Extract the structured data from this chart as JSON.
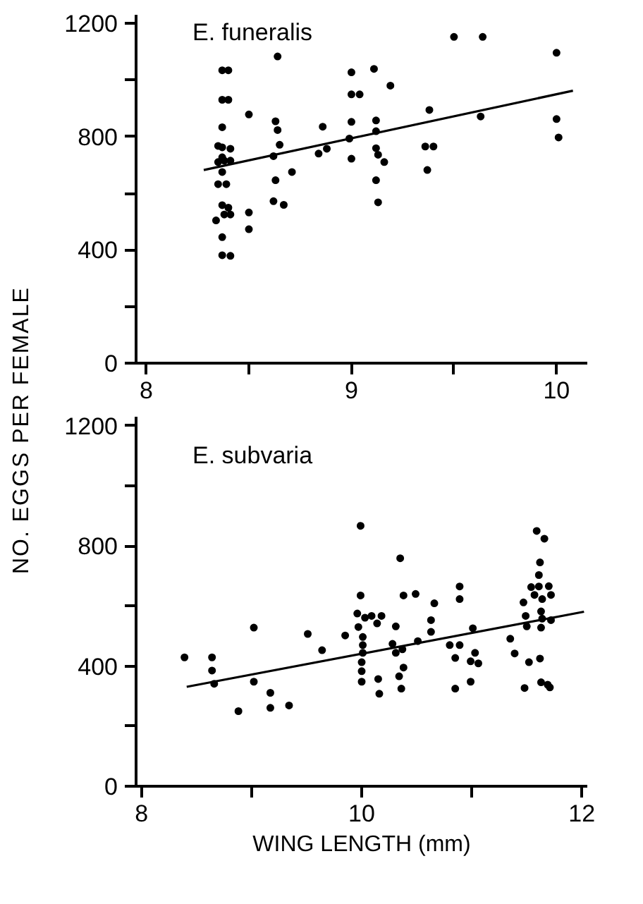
{
  "chart_data": [
    {
      "type": "scatter",
      "annotations": [
        "E. funeralis"
      ],
      "ylabel": "NO. EGGS PER FEMALE",
      "grid": false,
      "xlim": [
        7.95,
        10.15
      ],
      "ylim": [
        0,
        1230
      ],
      "xticks": [
        8,
        {
          "value": 8.5,
          "label": null
        },
        9,
        {
          "value": 9.5,
          "label": null
        },
        10
      ],
      "yticks": [
        0,
        {
          "value": 200,
          "label": null
        },
        400,
        {
          "value": 600,
          "label": null
        },
        800,
        {
          "value": 1000,
          "label": null
        },
        1200
      ],
      "series": [
        {
          "marker": "circle",
          "color": "#000000",
          "x": [
            8.37,
            8.4,
            8.37,
            8.4,
            8.37,
            8.35,
            8.37,
            8.41,
            8.35,
            8.38,
            8.41,
            8.37,
            8.37,
            8.35,
            8.39,
            8.37,
            8.4,
            8.38,
            8.41,
            8.34,
            8.37,
            8.37,
            8.41,
            8.5,
            8.5,
            8.5,
            8.64,
            8.63,
            8.64,
            8.65,
            8.62,
            8.63,
            8.67,
            8.62,
            8.71,
            8.86,
            8.84,
            8.88,
            9.0,
            9.0,
            9.04,
            9.0,
            8.99,
            9.0,
            9.11,
            9.12,
            9.12,
            9.12,
            9.13,
            9.16,
            9.12,
            9.13,
            9.19,
            9.38,
            9.36,
            9.4,
            9.37,
            9.5,
            9.64,
            9.63,
            10.0,
            10.0,
            10.01
          ],
          "values": [
            1034,
            1034,
            930,
            930,
            833,
            767,
            762,
            757,
            710,
            715,
            715,
            675,
            727,
            632,
            632,
            558,
            549,
            525,
            525,
            504,
            445,
            381,
            379,
            878,
            532,
            473,
            1083,
            854,
            823,
            771,
            731,
            646,
            559,
            572,
            675,
            835,
            740,
            757,
            1027,
            949,
            949,
            852,
            793,
            722,
            1039,
            857,
            819,
            759,
            736,
            710,
            646,
            568,
            980,
            894,
            765,
            765,
            682,
            1152,
            1152,
            871,
            1096,
            862,
            797
          ]
        },
        {
          "type": "line",
          "color": "#000000",
          "x": [
            8.28,
            10.08
          ],
          "values": [
            682,
            962
          ]
        }
      ]
    },
    {
      "type": "scatter",
      "annotations": [
        "E. subvaria"
      ],
      "xlabel": "WING LENGTH (mm)",
      "grid": false,
      "xlim": [
        7.95,
        12.05
      ],
      "ylim": [
        0,
        1230
      ],
      "xticks": [
        8,
        {
          "value": 9,
          "label": null
        },
        10,
        {
          "value": 11,
          "label": null
        },
        12
      ],
      "yticks": [
        0,
        {
          "value": 200,
          "label": null
        },
        400,
        {
          "value": 600,
          "label": null
        },
        800,
        {
          "value": 1000,
          "label": null
        },
        1200
      ],
      "series": [
        {
          "marker": "circle",
          "color": "#000000",
          "x": [
            8.39,
            8.64,
            8.64,
            8.66,
            8.88,
            9.02,
            9.02,
            9.17,
            9.17,
            9.34,
            9.51,
            9.64,
            9.85,
            9.99,
            9.99,
            9.96,
            9.97,
            10.03,
            10.09,
            10.01,
            10.01,
            10.01,
            10.0,
            10.0,
            10.0,
            10.14,
            10.18,
            10.15,
            10.16,
            10.31,
            10.28,
            10.31,
            10.37,
            10.35,
            10.38,
            10.38,
            10.34,
            10.36,
            10.49,
            10.51,
            10.66,
            10.63,
            10.63,
            10.8,
            10.89,
            10.89,
            10.89,
            10.85,
            10.85,
            11.01,
            11.03,
            10.99,
            11.06,
            10.99,
            11.35,
            11.39,
            11.47,
            11.49,
            11.5,
            11.52,
            11.48,
            11.54,
            11.57,
            11.59,
            11.66,
            11.62,
            11.61,
            11.61,
            11.64,
            11.63,
            11.64,
            11.63,
            11.62,
            11.63,
            11.69,
            11.71,
            11.7,
            11.72,
            11.72
          ],
          "values": [
            429,
            429,
            385,
            341,
            250,
            528,
            348,
            311,
            261,
            269,
            507,
            453,
            502,
            867,
            635,
            575,
            530,
            561,
            567,
            497,
            470,
            444,
            413,
            383,
            348,
            542,
            567,
            357,
            308,
            532,
            474,
            444,
            456,
            759,
            635,
            395,
            366,
            325,
            640,
            483,
            609,
            553,
            514,
            470,
            665,
            623,
            470,
            427,
            325,
            526,
            444,
            416,
            409,
            348,
            491,
            442,
            612,
            567,
            532,
            413,
            327,
            663,
            637,
            850,
            824,
            745,
            703,
            665,
            623,
            582,
            558,
            528,
            425,
            346,
            338,
            329,
            666,
            637,
            553
          ]
        },
        {
          "type": "line",
          "color": "#000000",
          "x": [
            8.41,
            12.02
          ],
          "values": [
            331,
            581
          ]
        }
      ]
    }
  ]
}
